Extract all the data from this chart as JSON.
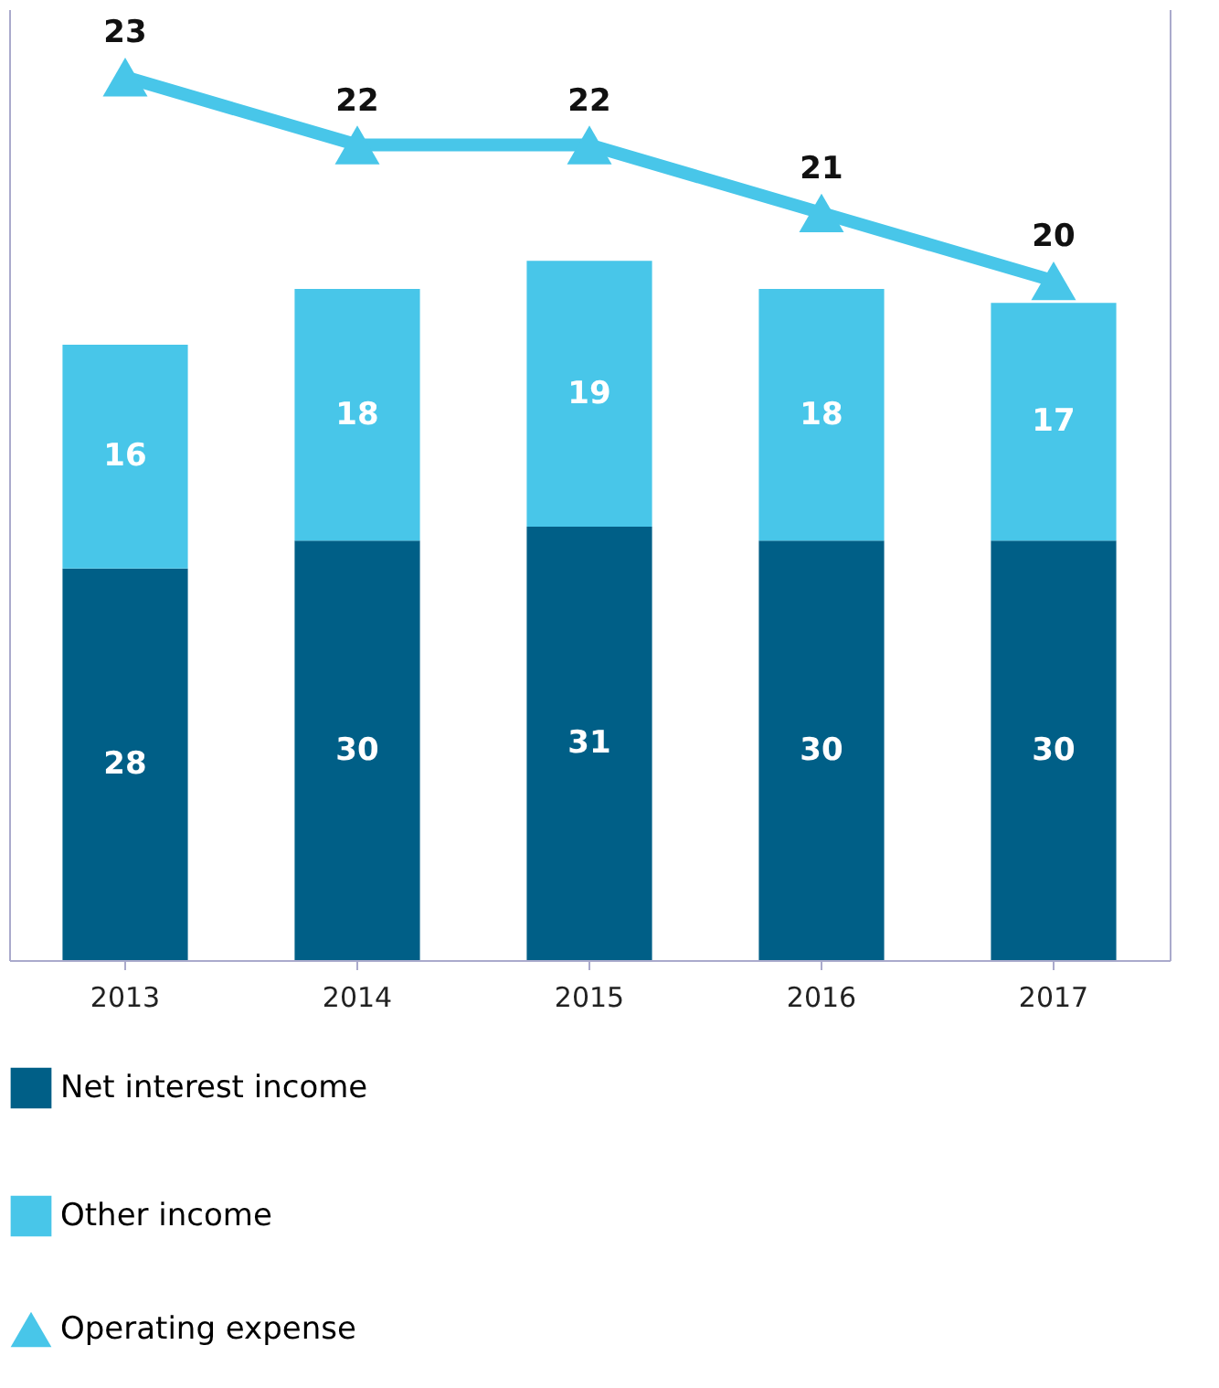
{
  "chart_data": {
    "type": "bar",
    "stacked": true,
    "categories": [
      "2013",
      "2014",
      "2015",
      "2016",
      "2017"
    ],
    "series": [
      {
        "name": "Net interest income",
        "color": "#005f87",
        "values": [
          28,
          30,
          31,
          30,
          30
        ]
      },
      {
        "name": "Other income",
        "color": "#48c6e9",
        "values": [
          16,
          18,
          19,
          18,
          17
        ]
      },
      {
        "name": "Operating expense",
        "color": "#48c6e9",
        "type": "line",
        "axis": "y2",
        "marker": "triangle",
        "values": [
          23,
          22,
          22,
          21,
          20
        ]
      }
    ],
    "ylim": [
      0,
      68
    ],
    "y2lim": [
      10,
      24
    ],
    "data_labels": true,
    "grid": false,
    "legend": "bottom",
    "tick_labels": "x"
  }
}
